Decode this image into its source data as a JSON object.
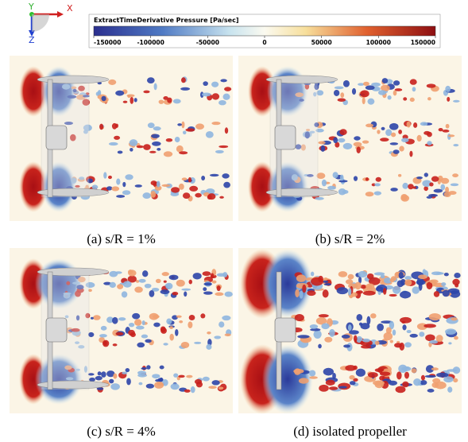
{
  "axes": {
    "x": "X",
    "y": "Y",
    "z": "Z"
  },
  "colorbar": {
    "title": "ExtractTimeDerivative Pressure [Pa/sec]",
    "range": [
      -150000,
      150000
    ],
    "ticks": [
      -150000,
      -100000,
      -50000,
      0,
      50000,
      100000,
      150000
    ]
  },
  "panels": [
    {
      "caption": "(a) s/R = 1%"
    },
    {
      "caption": "(b) s/R = 2%"
    },
    {
      "caption": "(c) s/R = 4%"
    },
    {
      "caption": "(d) isolated propeller"
    }
  ]
}
